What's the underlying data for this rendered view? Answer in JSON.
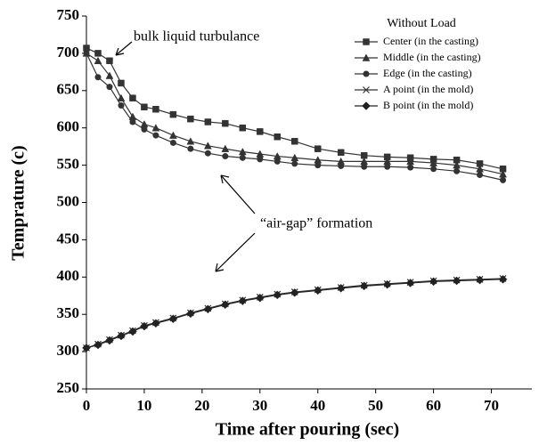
{
  "chart_data": {
    "type": "line",
    "y_label": "Temprature (c)",
    "x_label": "Time after pouring (sec)",
    "legend_title": "Without Load",
    "legend": "upper right",
    "annotations": [
      "bulk liquid turbulance",
      "“air-gap” formation"
    ],
    "x": [
      0,
      2,
      4,
      6,
      8,
      10,
      12,
      15,
      18,
      21,
      24,
      27,
      30,
      33,
      36,
      40,
      44,
      48,
      52,
      56,
      60,
      64,
      68,
      72
    ],
    "series": [
      {
        "name": "Center (in the casting)",
        "color": "#333333",
        "marker": "square",
        "values": [
          707,
          700,
          690,
          660,
          640,
          628,
          625,
          618,
          612,
          608,
          606,
          600,
          595,
          588,
          582,
          572,
          567,
          563,
          561,
          560,
          558,
          557,
          552,
          545
        ]
      },
      {
        "name": "Middle (in the casting)",
        "color": "#333333",
        "marker": "triangle",
        "values": [
          700,
          690,
          670,
          640,
          615,
          605,
          600,
          590,
          582,
          576,
          572,
          568,
          565,
          562,
          560,
          557,
          555,
          555,
          555,
          555,
          553,
          550,
          545,
          538
        ]
      },
      {
        "name": "Edge (in the casting)",
        "color": "#333333",
        "marker": "circle",
        "values": [
          700,
          668,
          655,
          630,
          608,
          598,
          590,
          580,
          572,
          566,
          562,
          560,
          558,
          555,
          552,
          550,
          549,
          548,
          548,
          547,
          545,
          542,
          537,
          530
        ]
      },
      {
        "name": "A point (in the mold)",
        "color": "#333333",
        "marker": "x",
        "values": [
          305,
          310,
          316,
          322,
          328,
          335,
          339,
          345,
          352,
          358,
          364,
          369,
          373,
          377,
          380,
          383,
          386,
          389,
          391,
          393,
          395,
          396,
          397,
          398
        ]
      },
      {
        "name": "B point (in the mold)",
        "color": "#222222",
        "marker": "diamond",
        "values": [
          305,
          309,
          315,
          321,
          327,
          334,
          338,
          344,
          351,
          357,
          363,
          368,
          372,
          376,
          379,
          382,
          385,
          388,
          390,
          392,
          394,
          395,
          396,
          397
        ]
      }
    ],
    "xlim": [
      0,
      77
    ],
    "xticks": [
      0,
      10,
      20,
      30,
      40,
      50,
      60,
      70
    ],
    "ylim": [
      250,
      750
    ],
    "yticks": [
      250,
      300,
      350,
      400,
      450,
      500,
      550,
      600,
      650,
      700,
      750
    ]
  }
}
